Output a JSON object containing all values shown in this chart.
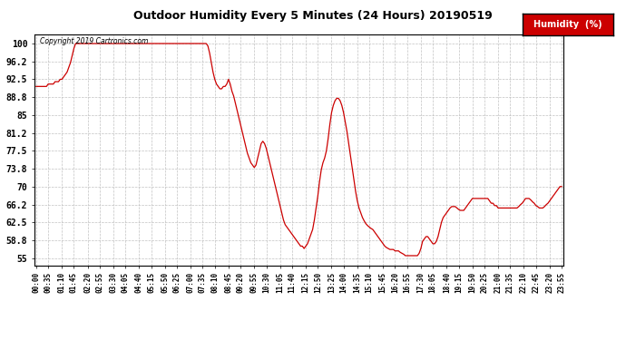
{
  "title": "Outdoor Humidity Every 5 Minutes (24 Hours) 20190519",
  "copyright": "Copyright 2019 Cartronics.com",
  "legend_label": "Humidity  (%)",
  "line_color": "#cc0000",
  "bg_color": "#ffffff",
  "plot_bg_color": "#ffffff",
  "grid_color": "#bbbbbb",
  "yticks": [
    55.0,
    58.8,
    62.5,
    66.2,
    70.0,
    73.8,
    77.5,
    81.2,
    85.0,
    88.8,
    92.5,
    96.2,
    100.0
  ],
  "ylim": [
    53.5,
    102.0
  ],
  "humidity_data": [
    91.0,
    91.0,
    91.0,
    91.0,
    91.0,
    91.0,
    91.0,
    91.5,
    91.5,
    91.5,
    91.5,
    92.0,
    92.0,
    92.0,
    92.5,
    92.5,
    93.0,
    93.5,
    94.0,
    95.0,
    96.0,
    97.5,
    99.0,
    100.0,
    100.0,
    100.0,
    100.0,
    100.0,
    100.0,
    100.0,
    100.0,
    100.0,
    100.0,
    100.0,
    100.0,
    100.0,
    100.0,
    100.0,
    100.0,
    100.0,
    100.0,
    100.0,
    100.0,
    100.0,
    100.0,
    100.0,
    100.0,
    100.0,
    100.0,
    100.0,
    100.0,
    100.0,
    100.0,
    100.0,
    100.0,
    100.0,
    100.0,
    100.0,
    100.0,
    100.0,
    100.0,
    100.0,
    100.0,
    100.0,
    100.0,
    100.0,
    100.0,
    100.0,
    100.0,
    100.0,
    100.0,
    100.0,
    100.0,
    100.0,
    100.0,
    100.0,
    100.0,
    100.0,
    100.0,
    100.0,
    100.0,
    100.0,
    100.0,
    100.0,
    100.0,
    100.0,
    100.0,
    100.0,
    100.0,
    100.0,
    100.0,
    100.0,
    100.0,
    100.0,
    100.0,
    100.0,
    100.0,
    100.0,
    100.0,
    100.0,
    99.5,
    98.0,
    96.0,
    94.0,
    92.5,
    91.5,
    91.0,
    90.5,
    90.5,
    91.0,
    91.0,
    91.5,
    92.5,
    91.5,
    90.0,
    89.0,
    87.5,
    86.0,
    84.5,
    83.0,
    81.5,
    80.0,
    78.5,
    77.0,
    76.0,
    75.0,
    74.5,
    74.0,
    74.5,
    76.0,
    77.5,
    79.0,
    79.5,
    79.0,
    78.0,
    76.5,
    75.0,
    73.5,
    72.0,
    70.5,
    69.0,
    67.5,
    66.0,
    64.5,
    63.0,
    62.0,
    61.5,
    61.0,
    60.5,
    60.0,
    59.5,
    59.0,
    58.5,
    58.0,
    57.5,
    57.5,
    57.0,
    57.5,
    58.0,
    59.0,
    60.0,
    61.0,
    63.0,
    65.5,
    68.0,
    71.0,
    73.5,
    75.0,
    76.0,
    77.5,
    80.0,
    83.0,
    85.5,
    87.0,
    88.0,
    88.5,
    88.5,
    88.0,
    87.0,
    85.5,
    83.5,
    81.5,
    79.0,
    76.5,
    74.0,
    71.5,
    69.0,
    67.0,
    65.5,
    64.5,
    63.5,
    62.8,
    62.2,
    61.8,
    61.5,
    61.2,
    61.0,
    60.5,
    60.0,
    59.5,
    59.0,
    58.5,
    58.0,
    57.5,
    57.2,
    57.0,
    56.8,
    56.8,
    56.8,
    56.5,
    56.5,
    56.5,
    56.2,
    56.0,
    55.8,
    55.5,
    55.5,
    55.5,
    55.5,
    55.5,
    55.5,
    55.5,
    55.5,
    56.0,
    57.0,
    58.5,
    59.0,
    59.5,
    59.5,
    59.0,
    58.5,
    58.0,
    58.0,
    58.5,
    59.5,
    61.0,
    62.5,
    63.5,
    64.0,
    64.5,
    65.0,
    65.5,
    65.8,
    65.8,
    65.8,
    65.5,
    65.2,
    65.0,
    65.0,
    65.0,
    65.5,
    66.0,
    66.5,
    67.0,
    67.5,
    67.5,
    67.5,
    67.5,
    67.5,
    67.5,
    67.5,
    67.5,
    67.5,
    67.5,
    67.0,
    66.5,
    66.5,
    66.0,
    66.0,
    65.5,
    65.5,
    65.5,
    65.5,
    65.5,
    65.5,
    65.5,
    65.5,
    65.5,
    65.5,
    65.5,
    65.5,
    65.8,
    66.2,
    66.5,
    67.0,
    67.5,
    67.5,
    67.5,
    67.2,
    66.8,
    66.5,
    66.0,
    65.8,
    65.5,
    65.5,
    65.5,
    65.8,
    66.2,
    66.5,
    67.0,
    67.5,
    68.0,
    68.5,
    69.0,
    69.5,
    70.0,
    70.0
  ],
  "xtick_labels": [
    "00:00",
    "00:35",
    "01:10",
    "01:45",
    "02:20",
    "02:55",
    "03:30",
    "04:05",
    "04:40",
    "05:15",
    "05:50",
    "06:25",
    "07:00",
    "07:35",
    "08:10",
    "08:45",
    "09:20",
    "09:55",
    "10:30",
    "11:05",
    "11:40",
    "12:15",
    "12:50",
    "13:25",
    "14:00",
    "14:35",
    "15:10",
    "15:45",
    "16:20",
    "16:55",
    "17:30",
    "18:05",
    "18:40",
    "19:15",
    "19:50",
    "20:25",
    "21:00",
    "21:35",
    "22:10",
    "22:45",
    "23:20",
    "23:55"
  ]
}
